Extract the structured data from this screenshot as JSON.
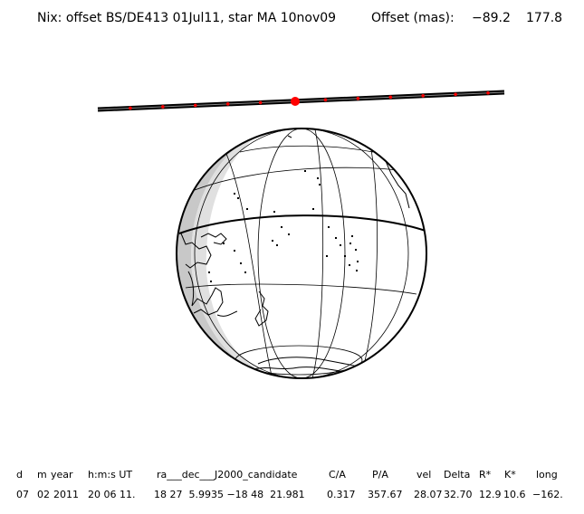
{
  "title": {
    "main": "Nix: offset BS/DE413 01Jul11, star MA 10nov09",
    "offset_label": "Offset (mas):",
    "offset_x": "−89.2",
    "offset_y": "177.8"
  },
  "table": {
    "headers": [
      "d",
      "m",
      "year",
      "h:m:s UT",
      "ra___dec___J2000_candidate",
      "C/A",
      "P/A",
      "vel",
      "Delta",
      "R*",
      "K*",
      "long"
    ],
    "values": [
      "07",
      "02",
      "2011",
      "20 06 11.",
      "18 27  5.9935 −18 48  21.981",
      "0.317",
      "357.67",
      "28.07",
      "32.70",
      "12.9",
      "10.6",
      "−162."
    ]
  },
  "colors": {
    "track": "#000000",
    "track_marks": "#ff0000",
    "night": "#c8c8c8",
    "ink": "#000000"
  }
}
